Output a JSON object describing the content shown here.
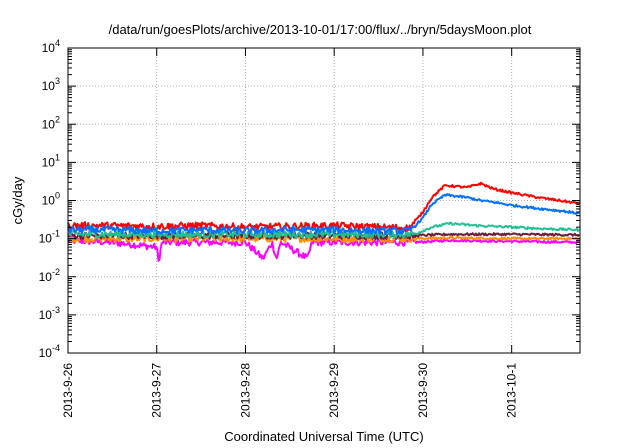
{
  "chart_data": {
    "type": "line",
    "title": "/data/run/goesPlots/archive/2013-10-01/17:00/flux/../bryn/5daysMoon.plot",
    "xlabel": "Coordinated Universal Time (UTC)",
    "ylabel": "cGy/day",
    "x_tick_labels": [
      "2013-9-26",
      "2013-9-27",
      "2013-9-28",
      "2013-9-29",
      "2013-9-30",
      "2013-10-1"
    ],
    "y_tick_labels": [
      {
        "base": "10",
        "exp": "4"
      },
      {
        "base": "10",
        "exp": "3"
      },
      {
        "base": "10",
        "exp": "2"
      },
      {
        "base": "10",
        "exp": "1"
      },
      {
        "base": "10",
        "exp": "0"
      },
      {
        "base": "10",
        "exp": "-1"
      },
      {
        "base": "10",
        "exp": "-2"
      },
      {
        "base": "10",
        "exp": "-3"
      },
      {
        "base": "10",
        "exp": "-4"
      }
    ],
    "xlim_days": [
      0,
      5.77
    ],
    "ylim_log10": [
      -4,
      4
    ],
    "y_scale": "log",
    "grid": true,
    "series": [
      {
        "color": "#ff0000",
        "values": [
          [
            0,
            0.22
          ],
          [
            0.5,
            0.22
          ],
          [
            1.0,
            0.21
          ],
          [
            1.5,
            0.22
          ],
          [
            2.0,
            0.2
          ],
          [
            2.5,
            0.21
          ],
          [
            3.0,
            0.22
          ],
          [
            3.5,
            0.2
          ],
          [
            3.85,
            0.19
          ],
          [
            4.0,
            0.5
          ],
          [
            4.1,
            1.2
          ],
          [
            4.25,
            2.5
          ],
          [
            4.5,
            2.2
          ],
          [
            4.65,
            2.8
          ],
          [
            4.8,
            2.0
          ],
          [
            5.0,
            1.6
          ],
          [
            5.3,
            1.2
          ],
          [
            5.6,
            0.95
          ],
          [
            5.77,
            0.82
          ]
        ]
      },
      {
        "color": "#0070ff",
        "values": [
          [
            0,
            0.17
          ],
          [
            0.5,
            0.17
          ],
          [
            1.0,
            0.16
          ],
          [
            1.5,
            0.17
          ],
          [
            2.0,
            0.16
          ],
          [
            2.5,
            0.17
          ],
          [
            3.0,
            0.17
          ],
          [
            3.5,
            0.16
          ],
          [
            3.85,
            0.16
          ],
          [
            4.0,
            0.35
          ],
          [
            4.1,
            0.8
          ],
          [
            4.25,
            1.4
          ],
          [
            4.5,
            1.2
          ],
          [
            4.65,
            1.0
          ],
          [
            4.8,
            0.9
          ],
          [
            5.0,
            0.75
          ],
          [
            5.3,
            0.62
          ],
          [
            5.6,
            0.52
          ],
          [
            5.77,
            0.45
          ]
        ]
      },
      {
        "color": "#20c090",
        "values": [
          [
            0,
            0.13
          ],
          [
            1.0,
            0.13
          ],
          [
            2.0,
            0.13
          ],
          [
            3.0,
            0.13
          ],
          [
            3.9,
            0.13
          ],
          [
            4.1,
            0.2
          ],
          [
            4.3,
            0.25
          ],
          [
            4.6,
            0.22
          ],
          [
            5.0,
            0.2
          ],
          [
            5.4,
            0.18
          ],
          [
            5.77,
            0.17
          ]
        ]
      },
      {
        "color": "#6a1e3e",
        "values": [
          [
            0,
            0.12
          ],
          [
            1.0,
            0.12
          ],
          [
            2.0,
            0.12
          ],
          [
            3.0,
            0.12
          ],
          [
            3.9,
            0.12
          ],
          [
            4.3,
            0.13
          ],
          [
            5.0,
            0.13
          ],
          [
            5.77,
            0.125
          ]
        ]
      },
      {
        "color": "#ff9000",
        "values": [
          [
            0,
            0.1
          ],
          [
            1.0,
            0.1
          ],
          [
            2.0,
            0.1
          ],
          [
            3.0,
            0.1
          ],
          [
            3.9,
            0.1
          ],
          [
            4.3,
            0.105
          ],
          [
            5.0,
            0.1
          ],
          [
            5.77,
            0.1
          ]
        ]
      },
      {
        "color": "#ff00ff",
        "values": [
          [
            0,
            0.09
          ],
          [
            0.5,
            0.08
          ],
          [
            1.0,
            0.06
          ],
          [
            1.02,
            0.025
          ],
          [
            1.06,
            0.08
          ],
          [
            1.5,
            0.08
          ],
          [
            2.0,
            0.08
          ],
          [
            2.2,
            0.03
          ],
          [
            2.3,
            0.08
          ],
          [
            2.35,
            0.03
          ],
          [
            2.4,
            0.08
          ],
          [
            2.7,
            0.03
          ],
          [
            2.75,
            0.08
          ],
          [
            3.0,
            0.08
          ],
          [
            3.5,
            0.08
          ],
          [
            3.9,
            0.08
          ],
          [
            4.3,
            0.09
          ],
          [
            5.0,
            0.085
          ],
          [
            5.77,
            0.08
          ]
        ]
      }
    ]
  }
}
